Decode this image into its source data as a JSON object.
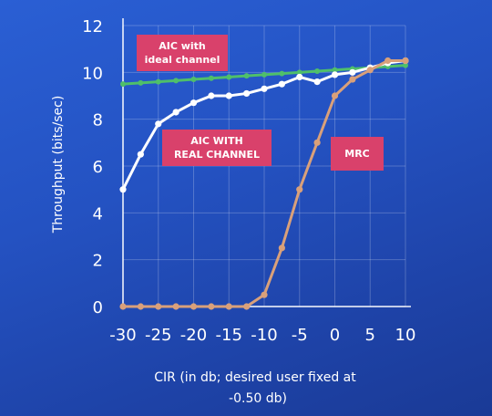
{
  "chart_data": {
    "type": "line",
    "xlabel_line1": "CIR (in db; desired user fixed at",
    "xlabel_line2": "-0.50 db)",
    "ylabel": "Throughput (bits/sec)",
    "xlim": [
      -30,
      10
    ],
    "ylim": [
      0,
      12
    ],
    "xticks": [
      "-30",
      "-25",
      "-20",
      "-15",
      "-10",
      "-5",
      "0",
      "5",
      "10"
    ],
    "yticks": [
      "0",
      "2",
      "4",
      "6",
      "8",
      "10",
      "12"
    ],
    "grid": true,
    "series": [
      {
        "color": "#4fbf6a",
        "x": [
          -30,
          -27.5,
          -25,
          -22.5,
          -20,
          -17.5,
          -15,
          -12.5,
          -10,
          -7.5,
          -5,
          -2.5,
          0,
          2.5,
          5,
          7.5,
          10
        ],
        "values": [
          9.5,
          9.55,
          9.6,
          9.65,
          9.7,
          9.75,
          9.8,
          9.85,
          9.9,
          9.95,
          10.0,
          10.05,
          10.1,
          10.15,
          10.2,
          10.25,
          10.3
        ]
      },
      {
        "color": "#ffffff",
        "x": [
          -30,
          -27.5,
          -25,
          -22.5,
          -20,
          -17.5,
          -15,
          -12.5,
          -10,
          -7.5,
          -5,
          -2.5,
          0,
          2.5,
          5,
          7.5,
          10
        ],
        "values": [
          5.0,
          6.5,
          7.8,
          8.3,
          8.7,
          9.0,
          9.0,
          9.1,
          9.3,
          9.5,
          9.8,
          9.6,
          9.9,
          10.0,
          10.2,
          10.4,
          10.5
        ]
      },
      {
        "color": "#d9a07a",
        "x": [
          -30,
          -27.5,
          -25,
          -22.5,
          -20,
          -17.5,
          -15,
          -12.5,
          -10,
          -7.5,
          -5,
          -2.5,
          0,
          2.5,
          5,
          7.5,
          10
        ],
        "values": [
          0,
          0,
          0,
          0,
          0,
          0,
          0,
          0,
          0.5,
          2.5,
          5.0,
          7.0,
          9.0,
          9.7,
          10.1,
          10.5,
          10.5
        ]
      }
    ],
    "annotations": [
      {
        "lines": [
          "AIC with",
          "ideal channel"
        ]
      },
      {
        "lines": [
          "AIC WITH",
          "REAL CHANNEL"
        ]
      },
      {
        "lines": [
          "MRC"
        ]
      }
    ]
  }
}
